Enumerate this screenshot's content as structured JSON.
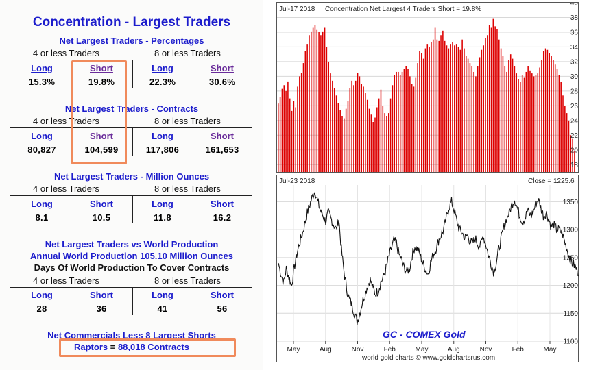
{
  "left": {
    "title": "Concentration - Largest Traders",
    "sections": [
      {
        "title": "Net Largest Traders - Percentages",
        "group_left": "4 or less Traders",
        "group_right": "8 or less Traders",
        "headers": [
          "Long",
          "Short",
          "Long",
          "Short"
        ],
        "values": [
          "15.3%",
          "19.8%",
          "22.3%",
          "30.6%"
        ]
      },
      {
        "title": "Net Largest Traders - Contracts",
        "group_left": "4 or less Traders",
        "group_right": "8 or less Traders",
        "headers": [
          "Long",
          "Short",
          "Long",
          "Short"
        ],
        "values": [
          "80,827",
          "104,599",
          "117,806",
          "161,653"
        ]
      },
      {
        "title": "Net Largest Traders - Million Ounces",
        "group_left": "4 or less Traders",
        "group_right": "8 or less Traders",
        "headers": [
          "Long",
          "Short",
          "Long",
          "Short"
        ],
        "values": [
          "8.1",
          "10.5",
          "11.8",
          "16.2"
        ]
      },
      {
        "title_line1": "Net Largest Traders vs World Production",
        "title_line2": "Annual World Production 105.10 Million Ounces",
        "title_line3": "Days Of World Production To Cover Contracts",
        "group_left": "4 or less Traders",
        "group_right": "8 or less Traders",
        "headers": [
          "Long",
          "Short",
          "Long",
          "Short"
        ],
        "values": [
          "28",
          "36",
          "41",
          "56"
        ]
      }
    ],
    "commercials_title": "Net Commercials Less 8 Largest Shorts",
    "raptors_link": "Raptors",
    "raptors_eq": " = ",
    "raptors_value": "88,018 Contracts"
  },
  "chart_top": {
    "date_label": "Jul-17  2018",
    "header": "Concentration Net Largest 4 Traders Short = 19.8%"
  },
  "chart_bottom": {
    "date_label": "Jul-23  2018",
    "close_label": "Close = 1225.6",
    "watermark": "GC - COMEX Gold",
    "footer": "world gold charts © www.goldchartsrus.com"
  },
  "colors": {
    "accent_blue": "#1c1ccc",
    "link_purple": "#6a2c9a",
    "bar_red": "#dd0000",
    "highlight_orange": "#f08a5b"
  },
  "chart_data": [
    {
      "type": "bar",
      "title": "Concentration Net Largest 4 Traders Short = 19.8%",
      "ylim": [
        17,
        40
      ],
      "yticks": [
        18,
        20,
        22,
        24,
        26,
        28,
        30,
        32,
        34,
        36,
        38,
        40
      ],
      "grid": true,
      "values": [
        26.3,
        27.2,
        28.3,
        28.8,
        28.0,
        29.3,
        27.0,
        25.3,
        26.6,
        25.8,
        28.6,
        30.0,
        30.5,
        31.8,
        33.4,
        34.4,
        35.6,
        36.1,
        36.6,
        37.0,
        36.3,
        36.0,
        35.6,
        36.1,
        36.6,
        34.0,
        32.0,
        30.4,
        29.4,
        28.4,
        27.4,
        26.4,
        25.4,
        24.6,
        24.3,
        25.6,
        26.6,
        28.4,
        29.4,
        28.8,
        29.4,
        30.5,
        30.0,
        29.0,
        28.6,
        27.8,
        26.8,
        25.6,
        24.8,
        23.8,
        24.4,
        25.8,
        27.0,
        28.2,
        26.0,
        25.0,
        24.6,
        25.0,
        27.0,
        28.8,
        30.2,
        30.6,
        30.6,
        30.2,
        30.6,
        31.0,
        31.4,
        31.0,
        30.0,
        29.0,
        28.6,
        29.8,
        31.8,
        33.4,
        33.2,
        32.4,
        33.8,
        34.4,
        34.0,
        34.6,
        35.0,
        36.6,
        35.0,
        34.8,
        35.6,
        36.2,
        34.8,
        34.2,
        33.8,
        34.4,
        34.6,
        34.2,
        34.4,
        34.0,
        33.6,
        35.0,
        33.8,
        32.8,
        32.4,
        31.8,
        31.4,
        30.6,
        30.0,
        31.4,
        32.6,
        33.6,
        34.2,
        35.2,
        35.6,
        37.0,
        36.6,
        37.8,
        36.8,
        36.4,
        35.0,
        33.8,
        32.8,
        31.4,
        30.6,
        32.2,
        33.0,
        32.4,
        31.4,
        30.4,
        29.6,
        29.2,
        30.2,
        29.8,
        30.6,
        31.4,
        30.8,
        30.4,
        30.0,
        30.2,
        30.4,
        31.2,
        32.2,
        33.4,
        33.8,
        33.6,
        33.2,
        32.8,
        32.2,
        31.6,
        31.0,
        30.2,
        29.2,
        27.4,
        26.0,
        25.0,
        24.0,
        22.0,
        21.5,
        19.8
      ]
    },
    {
      "type": "line",
      "title": "GC - COMEX Gold",
      "xlabel": "",
      "ylabel": "",
      "x_tick_labels": [
        "May",
        "Aug",
        "Nov",
        "Feb",
        "May",
        "Aug",
        "Nov",
        "Feb",
        "May"
      ],
      "ylim": [
        1100,
        1380
      ],
      "yticks": [
        1100,
        1150,
        1200,
        1250,
        1300,
        1350
      ],
      "grid": true,
      "series": [
        {
          "values": [
            1240,
            1220,
            1205,
            1230,
            1215,
            1200,
            1230,
            1255,
            1275,
            1290,
            1310,
            1330,
            1345,
            1360,
            1370,
            1350,
            1335,
            1325,
            1315,
            1330,
            1320,
            1310,
            1300,
            1320,
            1265,
            1225,
            1195,
            1175,
            1165,
            1150,
            1135,
            1150,
            1170,
            1185,
            1200,
            1210,
            1195,
            1185,
            1190,
            1205,
            1215,
            1230,
            1250,
            1265,
            1280,
            1275,
            1255,
            1245,
            1230,
            1225,
            1230,
            1255,
            1270,
            1265,
            1255,
            1240,
            1230,
            1220,
            1240,
            1255,
            1265,
            1280,
            1290,
            1300,
            1320,
            1340,
            1350,
            1335,
            1315,
            1300,
            1295,
            1285,
            1290,
            1280,
            1275,
            1285,
            1275,
            1270,
            1290,
            1275,
            1255,
            1240,
            1225,
            1240,
            1265,
            1285,
            1305,
            1320,
            1330,
            1345,
            1355,
            1340,
            1325,
            1315,
            1320,
            1335,
            1325,
            1330,
            1345,
            1355,
            1340,
            1325,
            1330,
            1320,
            1305,
            1310,
            1300,
            1300,
            1295,
            1280,
            1265,
            1250,
            1240,
            1235,
            1225,
            1226
          ]
        }
      ]
    }
  ]
}
